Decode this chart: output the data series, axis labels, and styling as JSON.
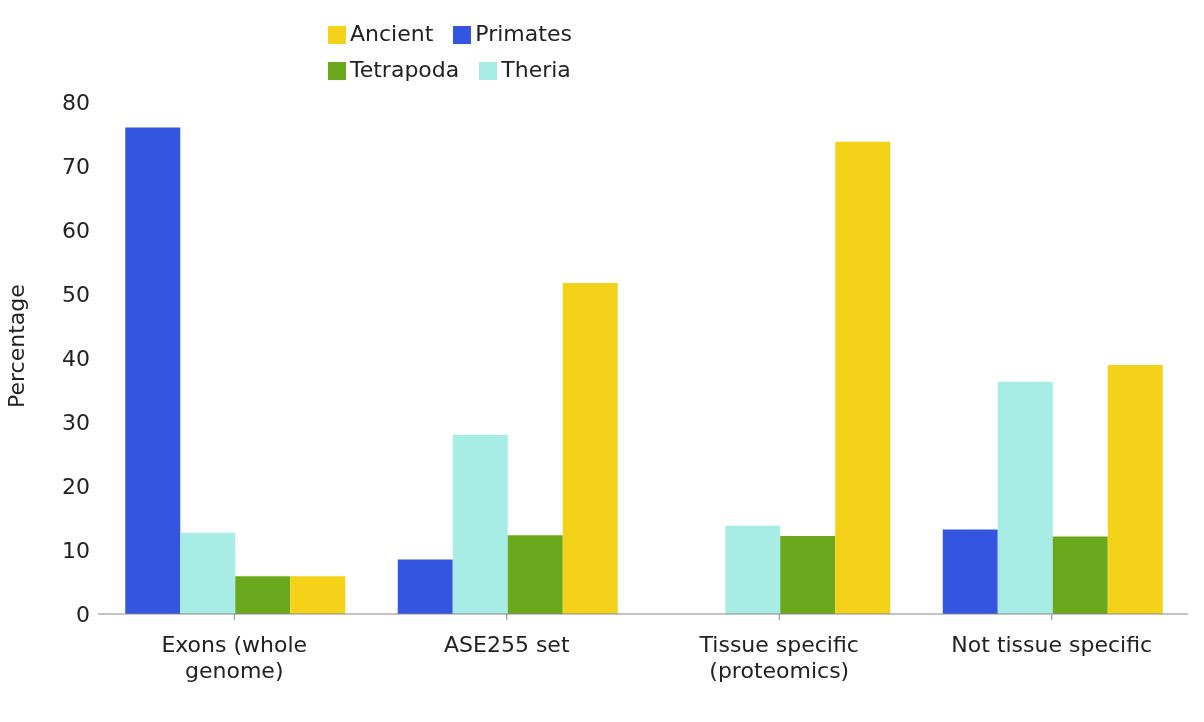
{
  "chart_data": {
    "type": "bar",
    "ylabel": "Percentage",
    "categories": [
      "Exons (whole genome)",
      "ASE255 set",
      "Tissue specific (proteomics)",
      "Not tissue specific"
    ],
    "series": [
      {
        "name": "Primates",
        "color": "#3355e0",
        "values": [
          76,
          8.5,
          0,
          13.2
        ]
      },
      {
        "name": "Theria",
        "color": "#a8ece6",
        "values": [
          12.7,
          28,
          13.8,
          36.3
        ]
      },
      {
        "name": "Tetrapoda",
        "color": "#6aa81e",
        "values": [
          5.9,
          12.3,
          12.2,
          12.1
        ]
      },
      {
        "name": "Ancient",
        "color": "#f5d21a",
        "values": [
          5.9,
          51.7,
          73.8,
          38.9
        ]
      }
    ],
    "ylim": [
      0,
      80
    ],
    "yticks": [
      0,
      10,
      20,
      30,
      40,
      50,
      60,
      70,
      80
    ],
    "grid": false,
    "legend": "top"
  }
}
